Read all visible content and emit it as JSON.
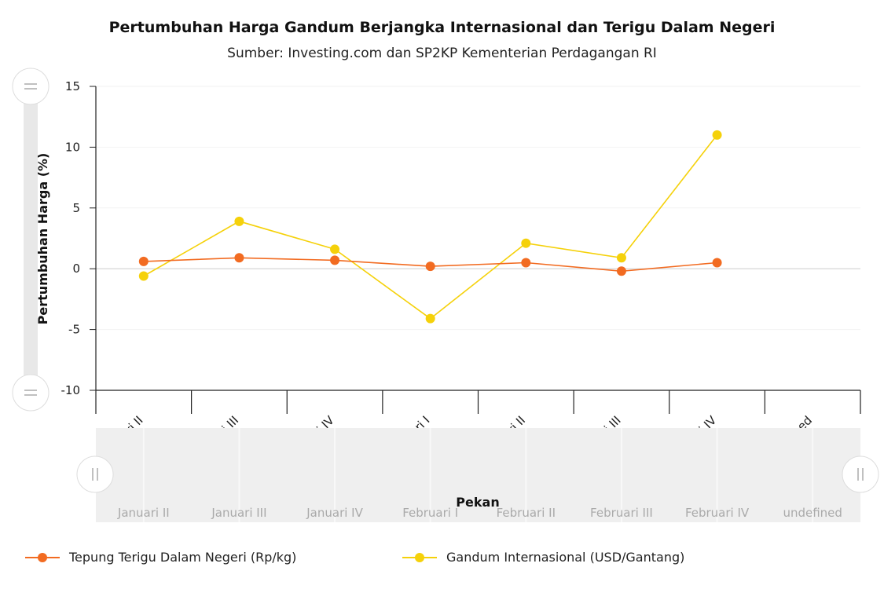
{
  "chart_data": {
    "type": "line",
    "title": "Pertumbuhan Harga Gandum Berjangka Internasional dan Terigu Dalam Negeri",
    "subtitle": "Sumber: Investing.com dan SP2KP Kementerian Perdagangan RI",
    "xlabel": "Pekan",
    "ylabel": "Pertumbuhan Harga (%)",
    "ylim": [
      -10,
      15
    ],
    "yticks": [
      15,
      10,
      5,
      0,
      -5,
      -10
    ],
    "categories": [
      "Januari II",
      "Januari III",
      "Januari IV",
      "Februari I",
      "Februari II",
      "Februari III",
      "Februari IV",
      "undefined"
    ],
    "series": [
      {
        "name": "Tepung Terigu Dalam Negeri (Rp/kg)",
        "color": "#f26b21",
        "values": [
          0.6,
          0.9,
          0.7,
          0.2,
          0.5,
          -0.2,
          0.5,
          null
        ]
      },
      {
        "name": "Gandum Internasional (USD/Gantang)",
        "color": "#f5d10a",
        "values": [
          -0.6,
          3.9,
          1.6,
          -4.1,
          2.1,
          0.9,
          11.0,
          null
        ]
      }
    ],
    "grid": true,
    "legend_position": "bottom"
  }
}
